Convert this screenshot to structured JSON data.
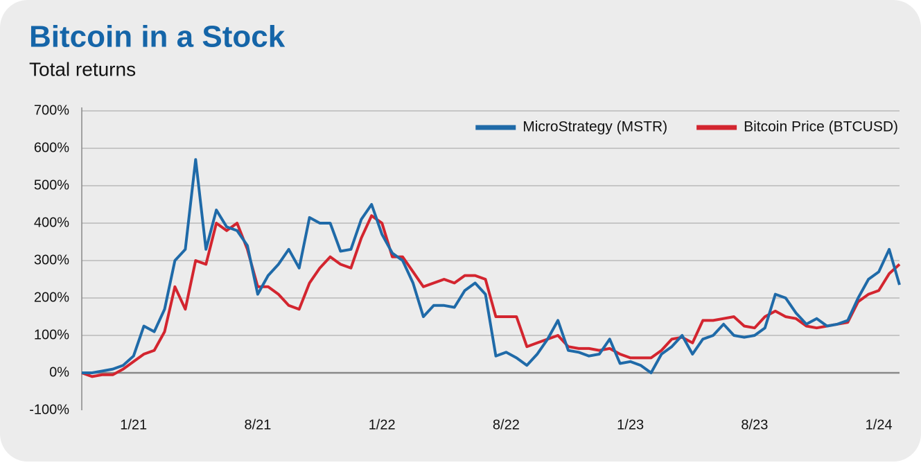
{
  "chart_data": {
    "type": "line",
    "title": "Bitcoin in a Stock",
    "subtitle": "Total returns",
    "categories": [
      null,
      null,
      null,
      null,
      null,
      "1/21",
      null,
      null,
      null,
      null,
      null,
      null,
      null,
      null,
      null,
      null,
      null,
      "8/21",
      null,
      null,
      null,
      null,
      null,
      null,
      null,
      null,
      null,
      null,
      null,
      "1/22",
      null,
      null,
      null,
      null,
      null,
      null,
      null,
      null,
      null,
      null,
      null,
      "8/22",
      null,
      null,
      null,
      null,
      null,
      null,
      null,
      null,
      null,
      null,
      null,
      "1/23",
      null,
      null,
      null,
      null,
      null,
      null,
      null,
      null,
      null,
      null,
      null,
      "8/23",
      null,
      null,
      null,
      null,
      null,
      null,
      null,
      null,
      null,
      null,
      null,
      "1/24",
      null,
      null
    ],
    "series": [
      {
        "name": "MicroStrategy (MSTR)",
        "color": "#1f6aa8",
        "values": [
          0,
          0,
          5,
          10,
          20,
          45,
          125,
          110,
          170,
          300,
          330,
          570,
          330,
          435,
          390,
          380,
          340,
          210,
          260,
          290,
          330,
          280,
          415,
          400,
          400,
          325,
          330,
          410,
          450,
          370,
          320,
          300,
          240,
          150,
          180,
          180,
          175,
          220,
          240,
          210,
          45,
          55,
          40,
          20,
          50,
          90,
          140,
          60,
          55,
          45,
          50,
          90,
          25,
          30,
          20,
          0,
          50,
          70,
          100,
          50,
          90,
          100,
          130,
          100,
          95,
          100,
          120,
          210,
          200,
          160,
          130,
          145,
          125,
          130,
          140,
          200,
          250,
          270,
          330,
          235
        ]
      },
      {
        "name": "Bitcoin Price (BTCUSD)",
        "color": "#d3252f",
        "values": [
          0,
          -10,
          -5,
          -5,
          10,
          30,
          50,
          60,
          110,
          230,
          170,
          300,
          290,
          400,
          380,
          400,
          330,
          230,
          230,
          210,
          180,
          170,
          240,
          280,
          310,
          290,
          280,
          360,
          420,
          400,
          310,
          310,
          270,
          230,
          240,
          250,
          240,
          260,
          260,
          250,
          150,
          150,
          150,
          70,
          80,
          90,
          100,
          70,
          65,
          65,
          60,
          65,
          50,
          40,
          40,
          40,
          60,
          90,
          95,
          80,
          140,
          140,
          145,
          150,
          125,
          120,
          150,
          165,
          150,
          145,
          125,
          120,
          125,
          130,
          135,
          190,
          210,
          220,
          265,
          290
        ]
      }
    ],
    "ylim": [
      -100,
      700
    ],
    "yticks": [
      {
        "value": -100,
        "label": "-100%"
      },
      {
        "value": 0,
        "label": "0%"
      },
      {
        "value": 100,
        "label": "100%"
      },
      {
        "value": 200,
        "label": "200%"
      },
      {
        "value": 300,
        "label": "300%"
      },
      {
        "value": 400,
        "label": "400%"
      },
      {
        "value": 500,
        "label": "500%"
      },
      {
        "value": 600,
        "label": "600%"
      },
      {
        "value": 700,
        "label": "700%"
      }
    ],
    "grid": true,
    "legend": "upper right"
  }
}
